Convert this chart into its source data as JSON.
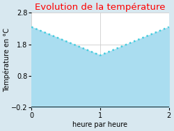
{
  "title": "Evolution de la température",
  "title_color": "#ff0000",
  "xlabel": "heure par heure",
  "ylabel": "Température en °C",
  "x": [
    0,
    1,
    2
  ],
  "y": [
    2.35,
    1.45,
    2.35
  ],
  "ylim": [
    -0.2,
    2.8
  ],
  "xlim": [
    0,
    2
  ],
  "yticks": [
    -0.2,
    0.8,
    1.8,
    2.8
  ],
  "xticks": [
    0,
    1,
    2
  ],
  "line_color": "#44ccdd",
  "fill_color": "#aaddf0",
  "fill_alpha": 1.0,
  "bg_color": "#d8e8f0",
  "plot_bg_color": "#ffffff",
  "line_style": "dotted",
  "line_width": 1.8,
  "title_fontsize": 9.5,
  "label_fontsize": 7,
  "tick_fontsize": 7,
  "grid_color": "#cccccc"
}
